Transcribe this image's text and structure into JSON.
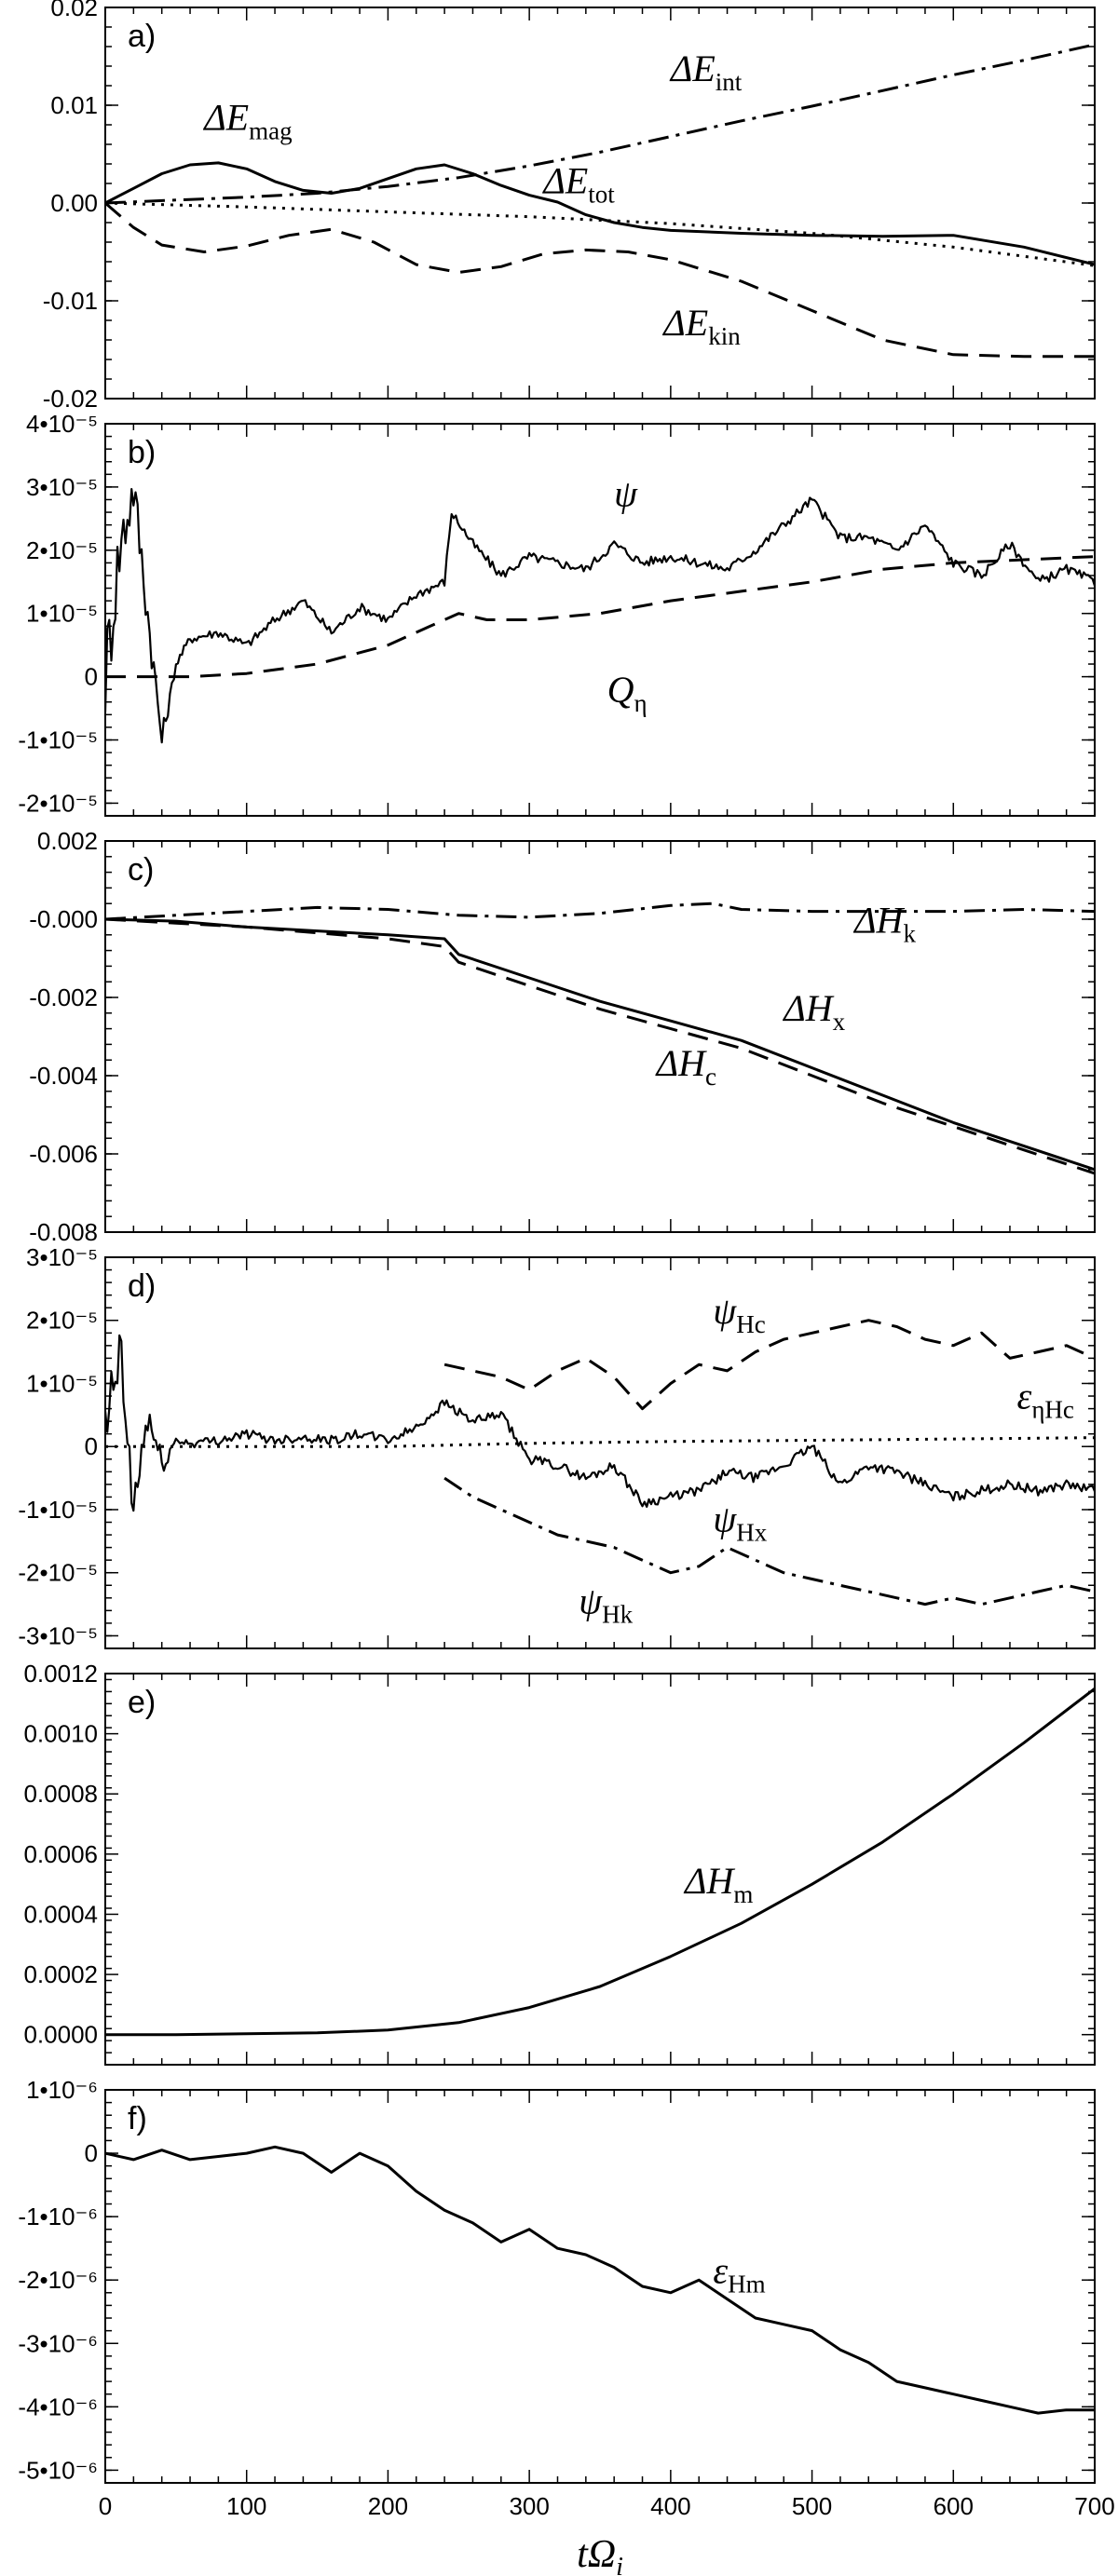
{
  "chart_data": [
    {
      "panel": "a)",
      "type": "line",
      "ylim": [
        -0.02,
        0.02
      ],
      "yticks": [
        "0.02",
        "0.01",
        "0.00",
        "-0.01",
        "-0.02"
      ],
      "ytick_values": [
        0.02,
        0.01,
        0.0,
        -0.01,
        -0.02
      ],
      "series": [
        {
          "name": "ΔE_mag",
          "style": "solid",
          "x": [
            0,
            20,
            40,
            60,
            80,
            100,
            120,
            140,
            160,
            180,
            200,
            220,
            240,
            260,
            280,
            300,
            320,
            340,
            360,
            380,
            400,
            450,
            500,
            550,
            600,
            650,
            700
          ],
          "y": [
            0,
            0.0015,
            0.003,
            0.0039,
            0.0041,
            0.0035,
            0.0022,
            0.0013,
            0.001,
            0.0015,
            0.0025,
            0.0035,
            0.0039,
            0.003,
            0.0018,
            0.0008,
            0.0001,
            -0.0012,
            -0.002,
            -0.0025,
            -0.0028,
            -0.0031,
            -0.0033,
            -0.0034,
            -0.0033,
            -0.0045,
            -0.0063
          ]
        },
        {
          "name": "ΔE_int",
          "style": "dashdot",
          "x": [
            0,
            50,
            100,
            150,
            200,
            250,
            300,
            350,
            400,
            450,
            500,
            550,
            600,
            650,
            700
          ],
          "y": [
            0,
            0.0003,
            0.0006,
            0.001,
            0.0017,
            0.0026,
            0.0038,
            0.0052,
            0.0068,
            0.0084,
            0.0099,
            0.0115,
            0.0131,
            0.0146,
            0.0162
          ]
        },
        {
          "name": "ΔE_tot",
          "style": "dotted",
          "x": [
            0,
            100,
            200,
            300,
            400,
            500,
            600,
            700
          ],
          "y": [
            0,
            -0.0004,
            -0.0009,
            -0.0014,
            -0.0021,
            -0.0031,
            -0.0045,
            -0.0064
          ]
        },
        {
          "name": "ΔE_kin",
          "style": "dashed",
          "x": [
            0,
            20,
            40,
            70,
            100,
            130,
            160,
            190,
            220,
            250,
            280,
            310,
            340,
            370,
            400,
            450,
            500,
            550,
            600,
            650,
            700
          ],
          "y": [
            0,
            -0.0025,
            -0.0043,
            -0.005,
            -0.0044,
            -0.0033,
            -0.0027,
            -0.004,
            -0.0063,
            -0.0071,
            -0.0065,
            -0.0052,
            -0.0048,
            -0.005,
            -0.0058,
            -0.008,
            -0.011,
            -0.014,
            -0.0155,
            -0.0157,
            -0.0157
          ]
        }
      ],
      "annotations": [
        {
          "base": "ΔE",
          "sub": "mag",
          "x": 70,
          "y": 0.0075
        },
        {
          "base": "ΔE",
          "sub": "int",
          "x": 400,
          "y": 0.0125
        },
        {
          "base": "ΔE",
          "sub": "tot",
          "x": 310,
          "y": 0.001
        },
        {
          "base": "ΔE",
          "sub": "kin",
          "x": 395,
          "y": -0.0135
        }
      ]
    },
    {
      "panel": "b)",
      "type": "line",
      "ylim": [
        -2.2e-05,
        4e-05
      ],
      "yticks": [
        "4•10⁻⁵",
        "3•10⁻⁵",
        "2•10⁻⁵",
        "1•10⁻⁵",
        "0",
        "-1•10⁻⁵",
        "-2•10⁻⁵"
      ],
      "ytick_values": [
        4e-05,
        3e-05,
        2e-05,
        1e-05,
        0,
        -1e-05,
        -2e-05
      ],
      "series": [
        {
          "name": "ψ",
          "style": "solid",
          "noisy": true,
          "x": [
            0,
            10,
            20,
            30,
            40,
            50,
            60,
            80,
            100,
            120,
            140,
            160,
            180,
            200,
            220,
            240,
            245,
            260,
            280,
            300,
            320,
            340,
            360,
            380,
            400,
            420,
            440,
            460,
            480,
            500,
            520,
            540,
            560,
            580,
            600,
            620,
            640,
            660,
            680,
            700
          ],
          "y": [
            0,
            2e-05,
            3e-05,
            1e-05,
            -1e-05,
            2e-06,
            6e-06,
            7e-06,
            5e-06,
            9e-06,
            1.2e-05,
            7e-06,
            1.1e-05,
            9e-06,
            1.3e-05,
            1.5e-05,
            2.6e-05,
            2.1e-05,
            1.6e-05,
            1.9e-05,
            1.8e-05,
            1.7e-05,
            2.1e-05,
            1.8e-05,
            1.9e-05,
            1.8e-05,
            1.7e-05,
            2e-05,
            2.4e-05,
            2.8e-05,
            2.2e-05,
            2.2e-05,
            2e-05,
            2.4e-05,
            1.8e-05,
            1.6e-05,
            2.1e-05,
            1.5e-05,
            1.7e-05,
            1.5e-05
          ]
        },
        {
          "name": "Q_η",
          "style": "dashed",
          "x": [
            0,
            60,
            100,
            150,
            200,
            230,
            250,
            270,
            300,
            350,
            400,
            450,
            500,
            550,
            600,
            650,
            700
          ],
          "y": [
            0,
            0,
            5e-07,
            2e-06,
            5e-06,
            8e-06,
            1e-05,
            9e-06,
            9e-06,
            1e-05,
            1.2e-05,
            1.35e-05,
            1.5e-05,
            1.7e-05,
            1.8e-05,
            1.85e-05,
            1.9e-05
          ]
        }
      ],
      "annotations": [
        {
          "base": "ψ",
          "sub": "",
          "x": 360,
          "y": 2.7e-05
        },
        {
          "base": "Q",
          "sub": "η",
          "x": 355,
          "y": -4e-06
        }
      ]
    },
    {
      "panel": "c)",
      "type": "line",
      "ylim": [
        -0.008,
        0.002
      ],
      "yticks": [
        "0.002",
        "-0.000",
        "-0.002",
        "-0.004",
        "-0.006",
        "-0.008"
      ],
      "ytick_values": [
        0.002,
        0.0,
        -0.002,
        -0.004,
        -0.006,
        -0.008
      ],
      "series": [
        {
          "name": "ΔH_k",
          "style": "dashdot",
          "x": [
            0,
            50,
            100,
            150,
            200,
            250,
            300,
            350,
            400,
            430,
            450,
            500,
            550,
            600,
            650,
            700
          ],
          "y": [
            0,
            0.0001,
            0.0002,
            0.0003,
            0.00025,
            0.0001,
            5e-05,
            0.00015,
            0.00035,
            0.0004,
            0.00025,
            0.0002,
            0.0002,
            0.0002,
            0.00025,
            0.0002
          ]
        },
        {
          "name": "ΔH_x",
          "style": "solid",
          "x": [
            0,
            50,
            100,
            150,
            200,
            240,
            250,
            300,
            350,
            400,
            450,
            500,
            550,
            600,
            650,
            700
          ],
          "y": [
            0,
            -5e-05,
            -0.0002,
            -0.0003,
            -0.0004,
            -0.0005,
            -0.0009,
            -0.0015,
            -0.0021,
            -0.0026,
            -0.0031,
            -0.0038,
            -0.0045,
            -0.0052,
            -0.0058,
            -0.0064
          ]
        },
        {
          "name": "ΔH_c",
          "style": "dashed",
          "x": [
            0,
            50,
            100,
            150,
            200,
            240,
            250,
            300,
            350,
            400,
            450,
            500,
            550,
            600,
            650,
            700
          ],
          "y": [
            0,
            -0.0001,
            -0.0002,
            -0.00035,
            -0.0005,
            -0.0007,
            -0.0011,
            -0.0017,
            -0.0023,
            -0.0028,
            -0.0033,
            -0.004,
            -0.0047,
            -0.0053,
            -0.0059,
            -0.0065
          ]
        }
      ],
      "annotations": [
        {
          "base": "ΔH",
          "sub": "k",
          "x": 530,
          "y": -0.00035
        },
        {
          "base": "ΔH",
          "sub": "x",
          "x": 480,
          "y": -0.0026
        },
        {
          "base": "ΔH",
          "sub": "c",
          "x": 390,
          "y": -0.004
        }
      ]
    },
    {
      "panel": "d)",
      "type": "line",
      "ylim": [
        -3.2e-05,
        3e-05
      ],
      "yticks": [
        "3•10⁻⁵",
        "2•10⁻⁵",
        "1•10⁻⁵",
        "0",
        "-1•10⁻⁵",
        "-2•10⁻⁵",
        "-3•10⁻⁵"
      ],
      "ytick_values": [
        3e-05,
        2e-05,
        1e-05,
        0,
        -1e-05,
        -2e-05,
        -3e-05
      ],
      "series": [
        {
          "name": "ψ_Hc",
          "style": "dashed",
          "x": [
            240,
            260,
            280,
            300,
            320,
            340,
            360,
            380,
            400,
            420,
            440,
            460,
            480,
            500,
            520,
            540,
            560,
            580,
            600,
            620,
            640,
            660,
            680,
            700
          ],
          "y": [
            1.3e-05,
            1.2e-05,
            1.1e-05,
            9e-06,
            1.2e-05,
            1.4e-05,
            1.1e-05,
            6e-06,
            1e-05,
            1.3e-05,
            1.2e-05,
            1.5e-05,
            1.7e-05,
            1.8e-05,
            1.9e-05,
            2e-05,
            1.9e-05,
            1.7e-05,
            1.6e-05,
            1.8e-05,
            1.4e-05,
            1.5e-05,
            1.6e-05,
            1.4e-05
          ]
        },
        {
          "name": "ψ_Hx",
          "style": "solid",
          "noisy": true,
          "x": [
            0,
            10,
            20,
            30,
            40,
            50,
            60,
            80,
            100,
            120,
            140,
            160,
            180,
            200,
            220,
            240,
            260,
            280,
            300,
            320,
            340,
            360,
            380,
            400,
            420,
            440,
            460,
            480,
            500,
            520,
            540,
            560,
            580,
            600,
            620,
            640,
            660,
            680,
            700
          ],
          "y": [
            0,
            1.5e-05,
            -1e-05,
            5e-06,
            -3e-06,
            1e-06,
            5e-07,
            1e-06,
            2e-06,
            1e-06,
            1.5e-06,
            1e-06,
            2e-06,
            1e-06,
            3e-06,
            7e-06,
            4e-06,
            5e-06,
            -2e-06,
            -3e-06,
            -5e-06,
            -3e-06,
            -9e-06,
            -8e-06,
            -7e-06,
            -4e-06,
            -5e-06,
            -3e-06,
            0.0,
            -6e-06,
            -3e-06,
            -4e-06,
            -6e-06,
            -8e-06,
            -7e-06,
            -6e-06,
            -7e-06,
            -6e-06,
            -7e-06
          ]
        },
        {
          "name": "ψ_Hk",
          "style": "dashdot",
          "x": [
            240,
            260,
            280,
            300,
            320,
            340,
            360,
            380,
            400,
            420,
            440,
            460,
            480,
            500,
            520,
            540,
            560,
            580,
            600,
            620,
            640,
            660,
            680,
            700
          ],
          "y": [
            -5e-06,
            -8e-06,
            -1e-05,
            -1.2e-05,
            -1.4e-05,
            -1.5e-05,
            -1.6e-05,
            -1.8e-05,
            -2e-05,
            -1.9e-05,
            -1.6e-05,
            -1.8e-05,
            -2e-05,
            -2.1e-05,
            -2.2e-05,
            -2.3e-05,
            -2.4e-05,
            -2.5e-05,
            -2.4e-05,
            -2.5e-05,
            -2.4e-05,
            -2.3e-05,
            -2.2e-05,
            -2.3e-05
          ]
        },
        {
          "name": "ε_ηHc",
          "style": "dotted",
          "x": [
            0,
            100,
            200,
            300,
            400,
            500,
            600,
            700
          ],
          "y": [
            0,
            0,
            0,
            5e-07,
            8e-07,
            1e-06,
            1.2e-06,
            1.4e-06
          ]
        }
      ],
      "annotations": [
        {
          "base": "ψ",
          "sub": "Hc",
          "x": 430,
          "y": 1.95e-05
        },
        {
          "base": "ε",
          "sub": "ηHc",
          "x": 645,
          "y": 6e-06
        },
        {
          "base": "ψ",
          "sub": "Hx",
          "x": 430,
          "y": -1.35e-05
        },
        {
          "base": "ψ",
          "sub": "Hk",
          "x": 335,
          "y": -2.65e-05
        }
      ]
    },
    {
      "panel": "e)",
      "type": "line",
      "ylim": [
        -0.0001,
        0.0012
      ],
      "yticks": [
        "0.0012",
        "0.0010",
        "0.0008",
        "0.0006",
        "0.0004",
        "0.0002",
        "0.0000"
      ],
      "ytick_values": [
        0.0012,
        0.001,
        0.0008,
        0.0006,
        0.0004,
        0.0002,
        0.0
      ],
      "series": [
        {
          "name": "ΔH_m",
          "style": "solid",
          "x": [
            0,
            50,
            100,
            150,
            200,
            250,
            300,
            350,
            400,
            450,
            500,
            550,
            600,
            650,
            700
          ],
          "y": [
            0,
            0,
            3e-06,
            6e-06,
            1.5e-05,
            4e-05,
            9e-05,
            0.00016,
            0.00026,
            0.00037,
            0.0005,
            0.00064,
            0.0008,
            0.00097,
            0.00115
          ]
        }
      ],
      "annotations": [
        {
          "base": "ΔH",
          "sub": "m",
          "x": 410,
          "y": 0.00047
        }
      ]
    },
    {
      "panel": "f)",
      "type": "line",
      "ylim": [
        -5.2e-06,
        1e-06
      ],
      "yticks": [
        "1•10⁻⁶",
        "0",
        "-1•10⁻⁶",
        "-2•10⁻⁶",
        "-3•10⁻⁶",
        "-4•10⁻⁶",
        "-5•10⁻⁶"
      ],
      "ytick_values": [
        1e-06,
        0,
        -1e-06,
        -2e-06,
        -3e-06,
        -4e-06,
        -5e-06
      ],
      "series": [
        {
          "name": "ε_Hm",
          "style": "solid",
          "x": [
            0,
            20,
            40,
            60,
            80,
            100,
            120,
            140,
            160,
            180,
            200,
            220,
            240,
            260,
            280,
            300,
            320,
            340,
            360,
            380,
            400,
            420,
            440,
            460,
            480,
            500,
            520,
            540,
            560,
            580,
            600,
            620,
            640,
            660,
            680,
            700
          ],
          "y": [
            0,
            -1e-07,
            5e-08,
            -1e-07,
            -5e-08,
            0,
            1e-07,
            0,
            -3e-07,
            0,
            -2e-07,
            -6e-07,
            -9e-07,
            -1.1e-06,
            -1.4e-06,
            -1.2e-06,
            -1.5e-06,
            -1.6e-06,
            -1.8e-06,
            -2.1e-06,
            -2.2e-06,
            -2e-06,
            -2.3e-06,
            -2.6e-06,
            -2.7e-06,
            -2.8e-06,
            -3.1e-06,
            -3.3e-06,
            -3.6e-06,
            -3.7e-06,
            -3.8e-06,
            -3.9e-06,
            -4e-06,
            -4.1e-06,
            -4.05e-06,
            -4.05e-06
          ]
        }
      ],
      "annotations": [
        {
          "base": "ε",
          "sub": "Hm",
          "x": 430,
          "y": -2.05e-06
        }
      ]
    }
  ],
  "xaxis": {
    "xlim": [
      0,
      700
    ],
    "ticks": [
      "0",
      "100",
      "200",
      "300",
      "400",
      "500",
      "600",
      "700"
    ],
    "tick_values": [
      0,
      100,
      200,
      300,
      400,
      500,
      600,
      700
    ],
    "label": "tΩ",
    "label_sub": "i"
  }
}
